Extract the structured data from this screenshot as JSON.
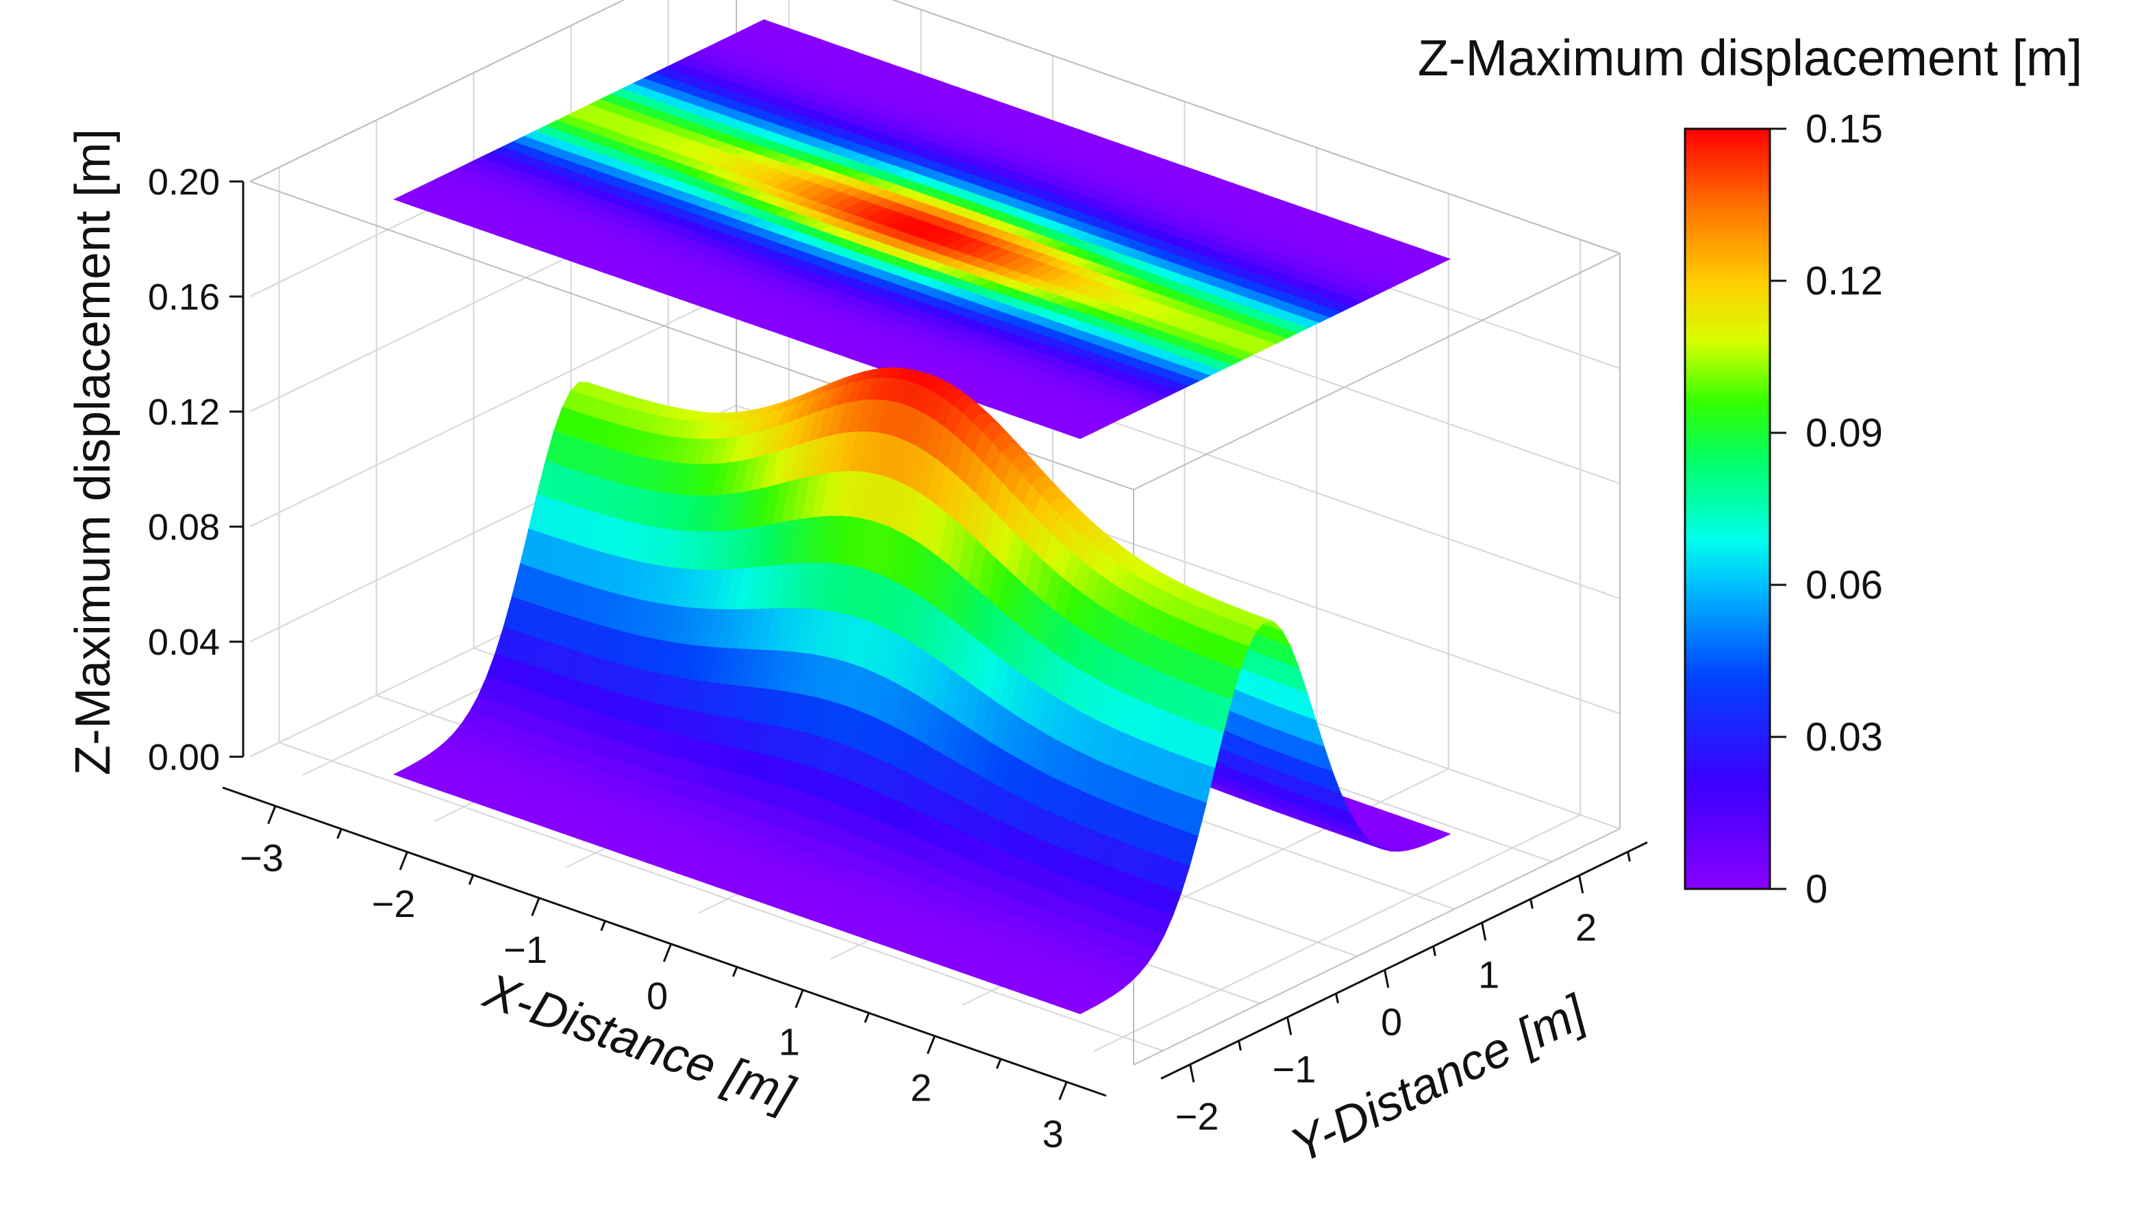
{
  "chart_data": {
    "type": "surface3d",
    "title": "",
    "x_axis": {
      "label": "X-Distance [m]",
      "range": [
        -3.4,
        3.3
      ],
      "ticks": [
        -3,
        -2,
        -1,
        0,
        1,
        2,
        3
      ],
      "tick_labels": [
        "−3",
        "−2",
        "−1",
        "0",
        "1",
        "2",
        "3"
      ]
    },
    "y_axis": {
      "label": "Y-Distance [m]",
      "range": [
        -2.3,
        2.7
      ],
      "ticks": [
        -2,
        -1,
        0,
        1,
        2
      ],
      "tick_labels": [
        "−2",
        "−1",
        "0",
        "1",
        "2"
      ]
    },
    "z_axis": {
      "label": "Z-Maximum displacement [m]",
      "range": [
        0,
        0.2
      ],
      "ticks": [
        0.0,
        0.04,
        0.08,
        0.12,
        0.16,
        0.2
      ],
      "tick_labels": [
        "0.00",
        "0.04",
        "0.08",
        "0.12",
        "0.16",
        "0.20"
      ]
    },
    "colorbar": {
      "title": "Z-Maximum displacement [m]",
      "range": [
        0,
        0.15
      ],
      "ticks": [
        0,
        0.03,
        0.06,
        0.09,
        0.12,
        0.15
      ],
      "tick_labels": [
        "0",
        "0.03",
        "0.06",
        "0.09",
        "0.12",
        "0.15"
      ],
      "colormap": "rainbow (violet → blue → cyan → green → yellow → orange → red)"
    },
    "surface": {
      "x_extent": [
        -2.6,
        2.6
      ],
      "y_extent": [
        -1.9,
        1.9
      ],
      "peak": {
        "x": 0.0,
        "y": 0.0,
        "z": 0.15
      },
      "ridge_edge_z_at_x_ends": 0.105,
      "description_of_shape": "ridge along X centred at Y=0, maximum at the centre"
    },
    "projection": {
      "type": "contour map projected on top plane",
      "z_plane": 0.2
    },
    "grid": true
  }
}
